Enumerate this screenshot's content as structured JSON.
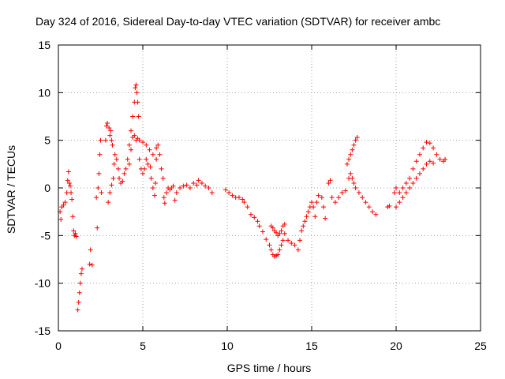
{
  "chart_data": {
    "type": "scatter",
    "title": "Day 324 of 2016, Sidereal Day-to-day VTEC variation (SDTVAR) for receiver ambc",
    "xlabel": "GPS time / hours",
    "ylabel": "SDTVAR / TECUs",
    "xlim": [
      0,
      25
    ],
    "ylim": [
      -15,
      15
    ],
    "xticks": [
      0,
      5,
      10,
      15,
      20,
      25
    ],
    "yticks": [
      -15,
      -10,
      -5,
      0,
      5,
      10,
      15
    ],
    "grid": true,
    "marker": "+",
    "color": "#ff0000",
    "series": [
      {
        "name": "SDTVAR",
        "points": [
          [
            0.1,
            -2.5
          ],
          [
            0.15,
            -3.3
          ],
          [
            0.2,
            -2.0
          ],
          [
            0.3,
            -1.8
          ],
          [
            0.4,
            -1.5
          ],
          [
            0.5,
            -0.5
          ],
          [
            0.55,
            0.8
          ],
          [
            0.6,
            1.7
          ],
          [
            0.65,
            0.5
          ],
          [
            0.7,
            0.2
          ],
          [
            0.75,
            -0.5
          ],
          [
            0.8,
            -1.2
          ],
          [
            0.85,
            -3.0
          ],
          [
            0.9,
            -4.5
          ],
          [
            0.95,
            -5.0
          ],
          [
            1.0,
            -4.8
          ],
          [
            1.05,
            -5.1
          ],
          [
            1.15,
            -12.8
          ],
          [
            1.2,
            -12.0
          ],
          [
            1.25,
            -11.0
          ],
          [
            1.3,
            -10.0
          ],
          [
            1.35,
            -9.0
          ],
          [
            1.4,
            -8.5
          ],
          [
            1.85,
            -8.0
          ],
          [
            1.9,
            -6.5
          ],
          [
            2.0,
            -8.1
          ],
          [
            2.3,
            -4.2
          ],
          [
            2.25,
            -1.0
          ],
          [
            2.35,
            0.0
          ],
          [
            2.4,
            1.5
          ],
          [
            2.45,
            3.5
          ],
          [
            2.5,
            5.0
          ],
          [
            2.55,
            -0.5
          ],
          [
            2.8,
            5.0
          ],
          [
            2.85,
            6.5
          ],
          [
            2.9,
            6.8
          ],
          [
            3.0,
            6.3
          ],
          [
            3.05,
            5.5
          ],
          [
            3.1,
            6.0
          ],
          [
            3.15,
            5.0
          ],
          [
            3.2,
            4.5
          ],
          [
            2.95,
            -1.5
          ],
          [
            3.05,
            -0.5
          ],
          [
            3.15,
            0.3
          ],
          [
            3.25,
            1.0
          ],
          [
            3.3,
            2.5
          ],
          [
            3.35,
            3.5
          ],
          [
            3.45,
            3.0
          ],
          [
            3.55,
            2.0
          ],
          [
            3.6,
            1.0
          ],
          [
            3.7,
            0.5
          ],
          [
            3.8,
            0.7
          ],
          [
            3.9,
            1.5
          ],
          [
            4.0,
            2.0
          ],
          [
            4.1,
            3.0
          ],
          [
            4.2,
            4.5
          ],
          [
            4.3,
            6.0
          ],
          [
            4.4,
            7.5
          ],
          [
            4.5,
            9.0
          ],
          [
            4.55,
            10.5
          ],
          [
            4.6,
            10.8
          ],
          [
            4.65,
            10.0
          ],
          [
            4.7,
            9.0
          ],
          [
            4.75,
            7.5
          ],
          [
            4.2,
            2.5
          ],
          [
            4.3,
            4.0
          ],
          [
            4.4,
            5.3
          ],
          [
            4.5,
            5.5
          ],
          [
            4.6,
            5.0
          ],
          [
            4.7,
            5.2
          ],
          [
            4.8,
            5.0
          ],
          [
            5.0,
            4.8
          ],
          [
            5.2,
            4.5
          ],
          [
            5.4,
            4.0
          ],
          [
            5.6,
            3.5
          ],
          [
            5.8,
            3.0
          ],
          [
            4.8,
            3.0
          ],
          [
            4.9,
            2.0
          ],
          [
            5.0,
            1.5
          ],
          [
            5.1,
            2.0
          ],
          [
            5.2,
            3.0
          ],
          [
            5.3,
            2.5
          ],
          [
            5.45,
            2.2
          ],
          [
            5.5,
            1.0
          ],
          [
            5.6,
            0.0
          ],
          [
            5.7,
            -0.8
          ],
          [
            5.75,
            0.5
          ],
          [
            5.8,
            4.2
          ],
          [
            5.9,
            4.5
          ],
          [
            6.0,
            3.5
          ],
          [
            6.1,
            2.0
          ],
          [
            6.2,
            1.0
          ],
          [
            6.25,
            -1.0
          ],
          [
            6.3,
            -1.6
          ],
          [
            6.4,
            -0.5
          ],
          [
            6.5,
            0.0
          ],
          [
            6.6,
            -0.2
          ],
          [
            6.7,
            0.0
          ],
          [
            6.8,
            0.2
          ],
          [
            6.9,
            -1.3
          ],
          [
            7.0,
            -0.5
          ],
          [
            7.2,
            0.0
          ],
          [
            7.4,
            0.2
          ],
          [
            7.6,
            0.3
          ],
          [
            7.8,
            0.0
          ],
          [
            8.0,
            0.5
          ],
          [
            8.2,
            0.3
          ],
          [
            8.3,
            0.8
          ],
          [
            8.5,
            0.5
          ],
          [
            8.7,
            0.2
          ],
          [
            8.9,
            0.0
          ],
          [
            9.1,
            -0.5
          ],
          [
            9.9,
            -0.2
          ],
          [
            10.1,
            -0.5
          ],
          [
            10.3,
            -0.8
          ],
          [
            10.5,
            -1.0
          ],
          [
            10.7,
            -1.0
          ],
          [
            10.9,
            -1.2
          ],
          [
            11.0,
            -1.5
          ],
          [
            11.2,
            -2.0
          ],
          [
            11.4,
            -2.8
          ],
          [
            11.6,
            -3.1
          ],
          [
            11.8,
            -3.5
          ],
          [
            11.9,
            -4.0
          ],
          [
            12.1,
            -4.6
          ],
          [
            12.3,
            -5.4
          ],
          [
            12.5,
            -6.0
          ],
          [
            12.6,
            -6.5
          ],
          [
            12.7,
            -7.0
          ],
          [
            12.8,
            -7.2
          ],
          [
            12.9,
            -7.1
          ],
          [
            13.0,
            -7.0
          ],
          [
            13.1,
            -6.5
          ],
          [
            13.2,
            -6.0
          ],
          [
            13.3,
            -5.5
          ],
          [
            13.4,
            -4.8
          ],
          [
            12.6,
            -4.0
          ],
          [
            12.7,
            -4.2
          ],
          [
            12.8,
            -4.5
          ],
          [
            12.9,
            -4.7
          ],
          [
            13.0,
            -5.0
          ],
          [
            13.1,
            -4.8
          ],
          [
            13.2,
            -4.5
          ],
          [
            13.3,
            -4.0
          ],
          [
            13.4,
            -3.8
          ],
          [
            13.6,
            -5.5
          ],
          [
            13.8,
            -5.8
          ],
          [
            14.0,
            -6.0
          ],
          [
            14.2,
            -6.5
          ],
          [
            14.3,
            -5.5
          ],
          [
            14.4,
            -4.5
          ],
          [
            14.5,
            -4.0
          ],
          [
            14.6,
            -3.5
          ],
          [
            14.7,
            -3.0
          ],
          [
            14.8,
            -2.5
          ],
          [
            14.9,
            -2.0
          ],
          [
            15.0,
            -1.5
          ],
          [
            15.1,
            -2.0
          ],
          [
            15.2,
            -3.0
          ],
          [
            15.3,
            -1.5
          ],
          [
            15.4,
            -0.8
          ],
          [
            15.6,
            -1.0
          ],
          [
            15.7,
            -2.0
          ],
          [
            15.8,
            -3.2
          ],
          [
            16.0,
            0.5
          ],
          [
            16.1,
            0.8
          ],
          [
            16.2,
            -1.0
          ],
          [
            16.4,
            -1.5
          ],
          [
            16.6,
            -1.0
          ],
          [
            16.8,
            -0.5
          ],
          [
            17.0,
            -0.3
          ],
          [
            17.1,
            2.5
          ],
          [
            17.2,
            3.0
          ],
          [
            17.3,
            3.5
          ],
          [
            17.4,
            4.0
          ],
          [
            17.5,
            4.5
          ],
          [
            17.6,
            5.0
          ],
          [
            17.7,
            5.3
          ],
          [
            17.2,
            1.0
          ],
          [
            17.3,
            1.5
          ],
          [
            17.4,
            1.0
          ],
          [
            17.5,
            0.5
          ],
          [
            17.6,
            0.0
          ],
          [
            17.8,
            -0.5
          ],
          [
            18.0,
            -1.0
          ],
          [
            18.2,
            -1.5
          ],
          [
            18.4,
            -2.0
          ],
          [
            18.6,
            -2.5
          ],
          [
            18.8,
            -2.8
          ],
          [
            19.5,
            -2.0
          ],
          [
            19.6,
            -1.9
          ],
          [
            19.9,
            -0.5
          ],
          [
            20.0,
            0.0
          ],
          [
            20.0,
            -2.0
          ],
          [
            20.2,
            -1.5
          ],
          [
            20.4,
            -1.0
          ],
          [
            20.6,
            -0.5
          ],
          [
            20.8,
            0.0
          ],
          [
            21.0,
            0.5
          ],
          [
            21.2,
            1.0
          ],
          [
            21.4,
            1.5
          ],
          [
            21.6,
            2.0
          ],
          [
            21.8,
            2.5
          ],
          [
            22.0,
            2.8
          ],
          [
            22.2,
            2.6
          ],
          [
            20.2,
            -0.5
          ],
          [
            20.4,
            0.0
          ],
          [
            20.6,
            0.5
          ],
          [
            20.8,
            1.0
          ],
          [
            21.0,
            2.0
          ],
          [
            21.2,
            2.8
          ],
          [
            21.4,
            3.5
          ],
          [
            21.6,
            4.2
          ],
          [
            21.8,
            4.8
          ],
          [
            22.0,
            4.7
          ],
          [
            22.2,
            4.2
          ],
          [
            22.4,
            3.5
          ],
          [
            22.6,
            3.0
          ],
          [
            22.8,
            2.8
          ],
          [
            22.9,
            3.0
          ]
        ]
      }
    ]
  }
}
